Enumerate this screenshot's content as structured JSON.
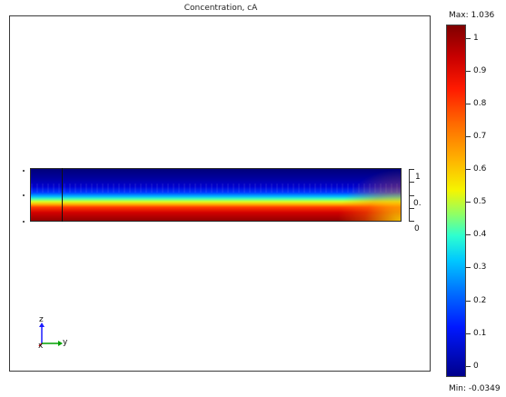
{
  "plot": {
    "title": "Concentration, cA"
  },
  "scale": {
    "labels": [
      "1",
      "0.",
      "0"
    ]
  },
  "triad": {
    "z_label": "z",
    "y_label": "y",
    "x_label": "x"
  },
  "colorbar": {
    "max_label": "Max: 1.036",
    "min_label": "Min: -0.0349",
    "max_value": 1.036,
    "min_value": -0.0349,
    "tick_labels": [
      "1",
      "0.9",
      "0.8",
      "0.7",
      "0.6",
      "0.5",
      "0.4",
      "0.3",
      "0.2",
      "0.1",
      "0"
    ],
    "colormap": "rainbow"
  },
  "colors": {
    "high": "#800000",
    "low": "#00008b",
    "triad_y": "#00a000",
    "triad_z": "#1a1aff",
    "triad_x": "#cc0000"
  }
}
